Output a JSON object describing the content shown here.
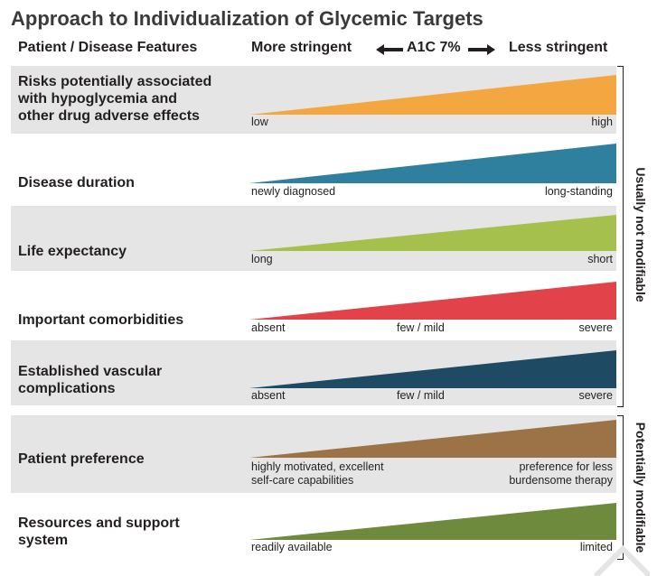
{
  "title": "Approach to Individualization of Glycemic Targets",
  "header": {
    "patient": "Patient / Disease Features",
    "more": "More stringent",
    "a1c": "A1C 7%",
    "less": "Less stringent"
  },
  "rows": [
    {
      "label": "Risks potentially associated\nwith hypoglycemia and\nother drug adverse effects",
      "low": "low",
      "mid": "",
      "high": "high",
      "color": "#f4a640"
    },
    {
      "label": "Disease duration",
      "low": "newly diagnosed",
      "mid": "",
      "high": "long-standing",
      "color": "#2f7f9f"
    },
    {
      "label": "Life expectancy",
      "low": "long",
      "mid": "",
      "high": "short",
      "color": "#a6c04d"
    },
    {
      "label": "Important comorbidities",
      "low": "absent",
      "mid": "few / mild",
      "high": "severe",
      "color": "#e2434b"
    },
    {
      "label": "Established vascular\ncomplications",
      "low": "absent",
      "mid": "few / mild",
      "high": "severe",
      "color": "#1e4a63"
    },
    {
      "label": "Patient preference",
      "low": "highly motivated, excellent\nself-care capabilities",
      "mid": "",
      "high": "preference for less\nburdensome therapy",
      "color": "#9b7346"
    },
    {
      "label": "Resources and support\nsystem",
      "low": "readily available",
      "mid": "",
      "high": "limited",
      "color": "#6e8a3c"
    }
  ],
  "side_labels": {
    "top": "Usually not modifiable",
    "bottom": "Potentially modifiable"
  }
}
